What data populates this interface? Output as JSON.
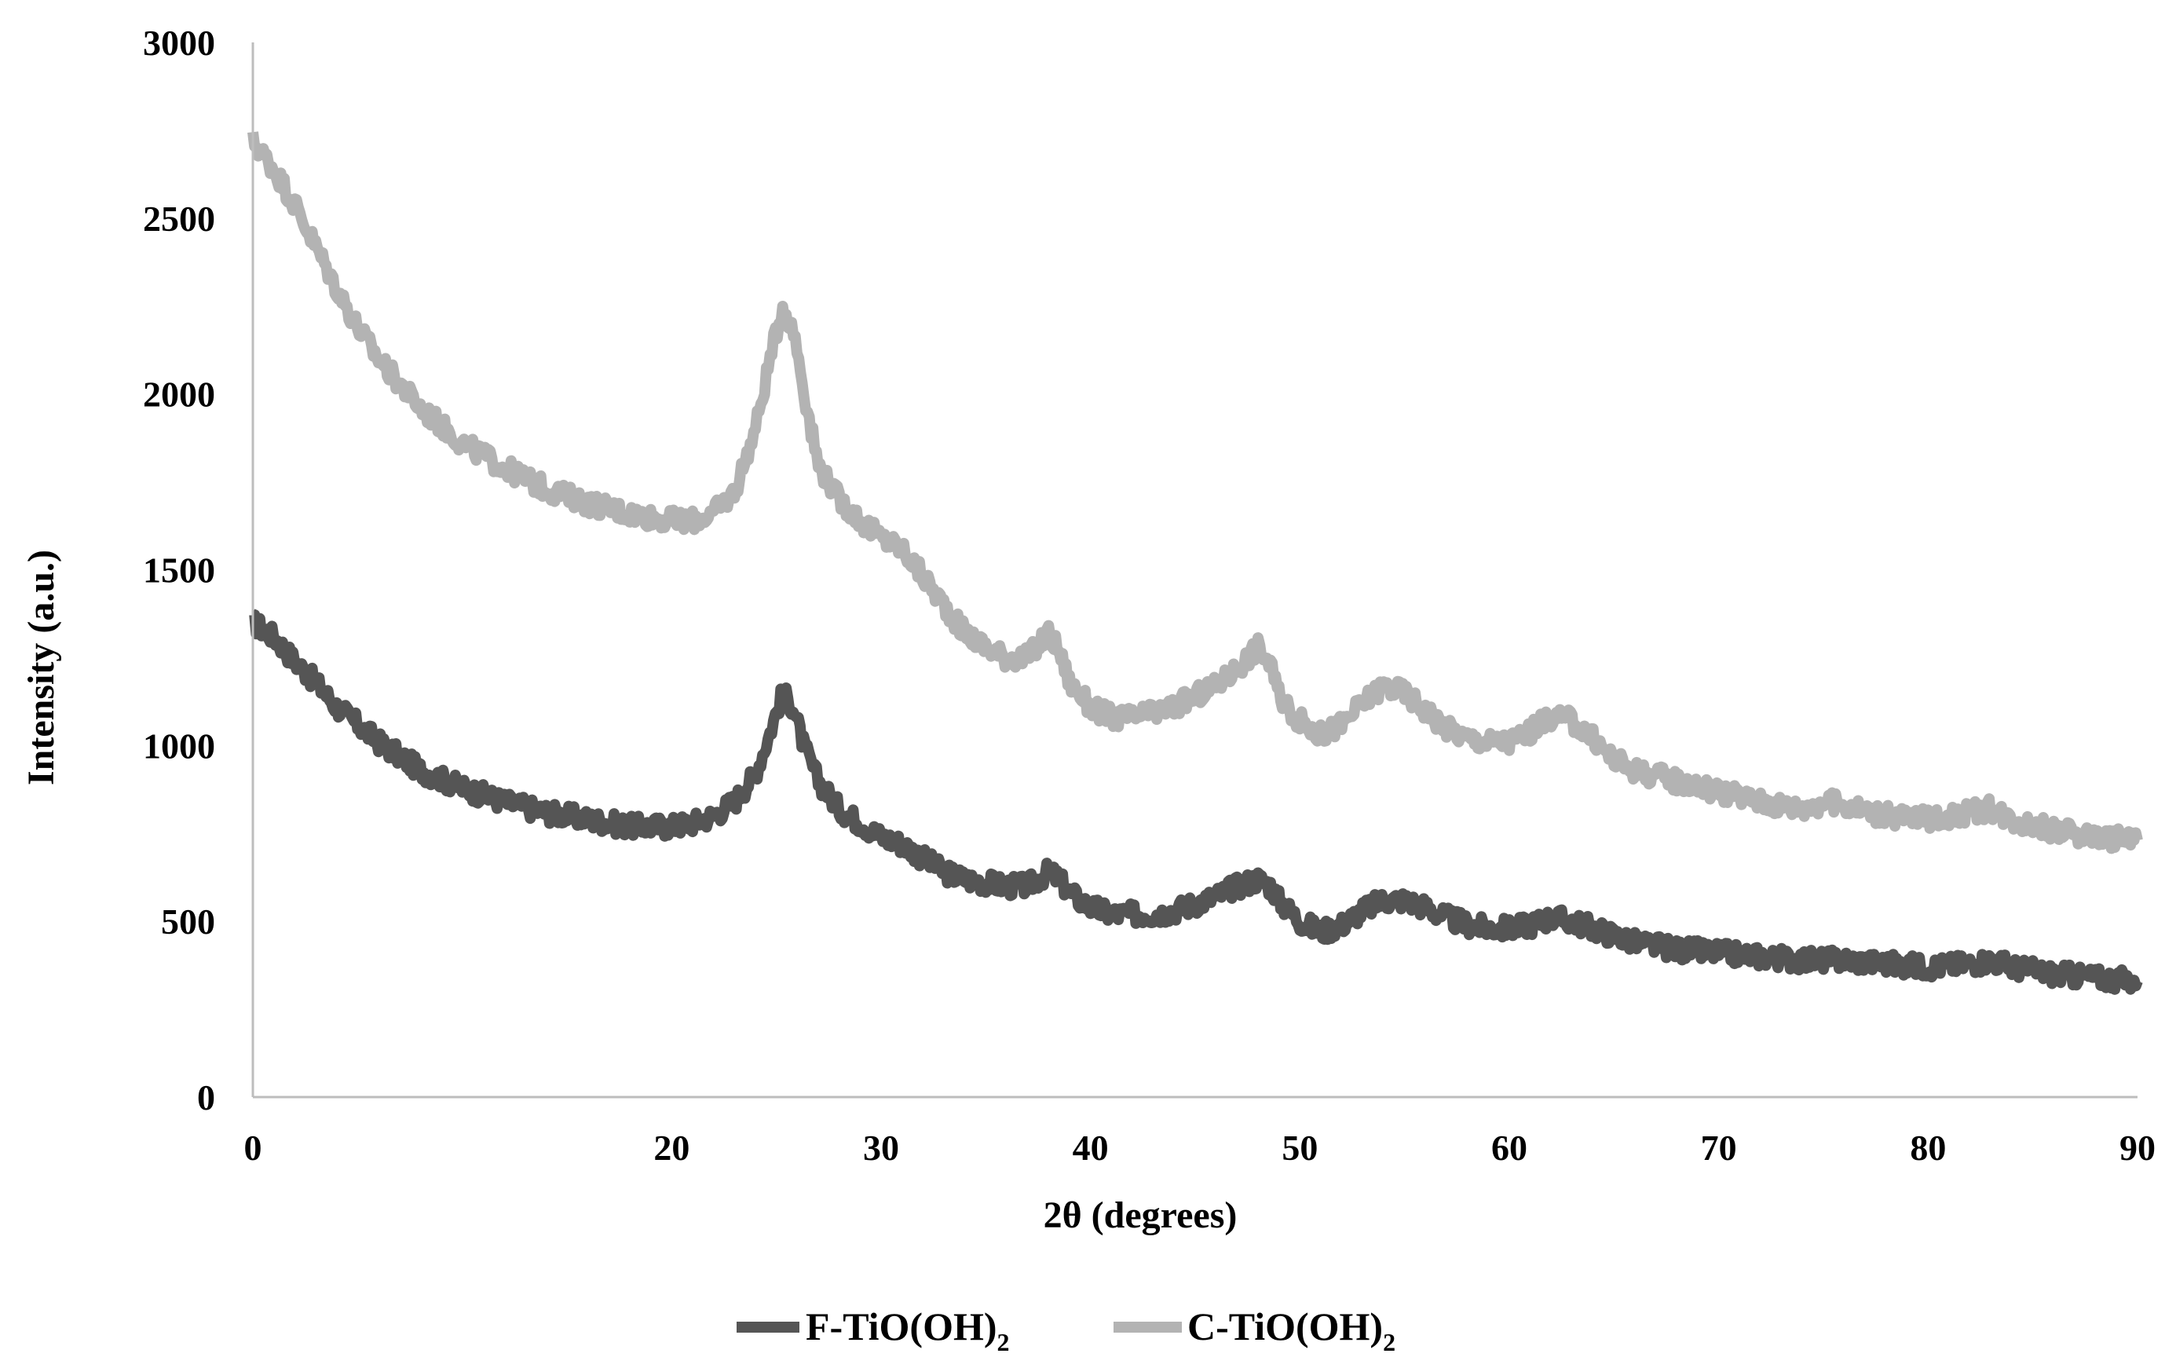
{
  "chart_data": {
    "type": "line",
    "title": "",
    "xlabel": "2θ (degrees)",
    "ylabel": "Intensity (a.u.)",
    "xlim": [
      0,
      90
    ],
    "ylim": [
      0,
      3000
    ],
    "x_ticks": [
      "0",
      "20",
      "30",
      "40",
      "50",
      "60",
      "70",
      "80",
      "90"
    ],
    "x_tick_values": [
      0,
      20,
      30,
      40,
      50,
      60,
      70,
      80,
      90
    ],
    "y_ticks": [
      "0",
      "500",
      "1000",
      "1500",
      "2000",
      "2500",
      "3000"
    ],
    "y_tick_values": [
      0,
      500,
      1000,
      1500,
      2000,
      2500,
      3000
    ],
    "grid": false,
    "legend_position": "bottom",
    "series": [
      {
        "name": "F-TiO(OH)",
        "subscript": "2",
        "color": "#555555",
        "points": [
          [
            0,
            1350
          ],
          [
            1,
            1310
          ],
          [
            2,
            1240
          ],
          [
            3,
            1180
          ],
          [
            4,
            1110
          ],
          [
            5,
            1060
          ],
          [
            6,
            1010
          ],
          [
            7,
            970
          ],
          [
            8,
            930
          ],
          [
            10,
            880
          ],
          [
            12,
            840
          ],
          [
            14,
            810
          ],
          [
            16,
            790
          ],
          [
            18,
            770
          ],
          [
            20,
            770
          ],
          [
            21,
            780
          ],
          [
            22,
            800
          ],
          [
            23,
            840
          ],
          [
            24,
            920
          ],
          [
            24.6,
            1020
          ],
          [
            25.3,
            1150
          ],
          [
            25.8,
            1110
          ],
          [
            26.3,
            1000
          ],
          [
            27,
            900
          ],
          [
            28,
            820
          ],
          [
            29,
            780
          ],
          [
            30,
            740
          ],
          [
            31,
            720
          ],
          [
            32,
            680
          ],
          [
            33,
            640
          ],
          [
            34,
            620
          ],
          [
            35,
            610
          ],
          [
            36,
            600
          ],
          [
            37,
            600
          ],
          [
            38,
            640
          ],
          [
            38.5,
            620
          ],
          [
            39,
            580
          ],
          [
            40,
            540
          ],
          [
            41,
            520
          ],
          [
            42,
            520
          ],
          [
            43,
            520
          ],
          [
            44,
            530
          ],
          [
            45,
            550
          ],
          [
            46,
            570
          ],
          [
            47,
            600
          ],
          [
            48,
            620
          ],
          [
            48.6,
            600
          ],
          [
            49,
            560
          ],
          [
            50,
            500
          ],
          [
            51,
            470
          ],
          [
            52,
            490
          ],
          [
            53,
            530
          ],
          [
            54,
            560
          ],
          [
            55,
            560
          ],
          [
            56,
            540
          ],
          [
            57,
            510
          ],
          [
            58,
            490
          ],
          [
            59,
            480
          ],
          [
            60,
            480
          ],
          [
            61,
            490
          ],
          [
            62,
            510
          ],
          [
            63,
            500
          ],
          [
            64,
            480
          ],
          [
            65,
            460
          ],
          [
            66,
            440
          ],
          [
            68,
            420
          ],
          [
            70,
            410
          ],
          [
            72,
            400
          ],
          [
            74,
            390
          ],
          [
            76,
            390
          ],
          [
            78,
            380
          ],
          [
            80,
            370
          ],
          [
            82,
            380
          ],
          [
            83,
            390
          ],
          [
            84,
            370
          ],
          [
            86,
            350
          ],
          [
            88,
            340
          ],
          [
            90,
            330
          ]
        ]
      },
      {
        "name": "C-TiO(OH)",
        "subscript": "2",
        "color": "#b3b3b3",
        "points": [
          [
            0,
            2720
          ],
          [
            1,
            2640
          ],
          [
            2,
            2540
          ],
          [
            3,
            2420
          ],
          [
            4,
            2300
          ],
          [
            5,
            2190
          ],
          [
            6,
            2100
          ],
          [
            7,
            2030
          ],
          [
            8,
            1960
          ],
          [
            10,
            1860
          ],
          [
            12,
            1790
          ],
          [
            14,
            1730
          ],
          [
            16,
            1690
          ],
          [
            18,
            1660
          ],
          [
            20,
            1640
          ],
          [
            21,
            1640
          ],
          [
            22,
            1660
          ],
          [
            23,
            1720
          ],
          [
            24,
            1900
          ],
          [
            24.7,
            2100
          ],
          [
            25.3,
            2250
          ],
          [
            25.9,
            2160
          ],
          [
            26.4,
            1980
          ],
          [
            27,
            1800
          ],
          [
            28,
            1700
          ],
          [
            29,
            1640
          ],
          [
            30,
            1590
          ],
          [
            31,
            1560
          ],
          [
            32,
            1480
          ],
          [
            33,
            1400
          ],
          [
            34,
            1320
          ],
          [
            35,
            1280
          ],
          [
            36,
            1250
          ],
          [
            37,
            1250
          ],
          [
            38,
            1320
          ],
          [
            38.5,
            1270
          ],
          [
            39,
            1180
          ],
          [
            40,
            1110
          ],
          [
            41,
            1080
          ],
          [
            42,
            1080
          ],
          [
            43,
            1090
          ],
          [
            44,
            1110
          ],
          [
            45,
            1140
          ],
          [
            46,
            1170
          ],
          [
            47,
            1220
          ],
          [
            48,
            1280
          ],
          [
            48.6,
            1230
          ],
          [
            49,
            1140
          ],
          [
            50,
            1070
          ],
          [
            51,
            1030
          ],
          [
            52,
            1060
          ],
          [
            53,
            1120
          ],
          [
            54,
            1170
          ],
          [
            55,
            1150
          ],
          [
            56,
            1100
          ],
          [
            57,
            1050
          ],
          [
            58,
            1020
          ],
          [
            59,
            1010
          ],
          [
            60,
            1010
          ],
          [
            61,
            1040
          ],
          [
            62,
            1080
          ],
          [
            63,
            1070
          ],
          [
            64,
            1020
          ],
          [
            65,
            960
          ],
          [
            66,
            930
          ],
          [
            68,
            900
          ],
          [
            70,
            870
          ],
          [
            72,
            840
          ],
          [
            74,
            820
          ],
          [
            75,
            840
          ],
          [
            76,
            830
          ],
          [
            78,
            800
          ],
          [
            80,
            790
          ],
          [
            82,
            810
          ],
          [
            83,
            820
          ],
          [
            84,
            790
          ],
          [
            86,
            760
          ],
          [
            88,
            740
          ],
          [
            90,
            730
          ]
        ]
      }
    ]
  }
}
